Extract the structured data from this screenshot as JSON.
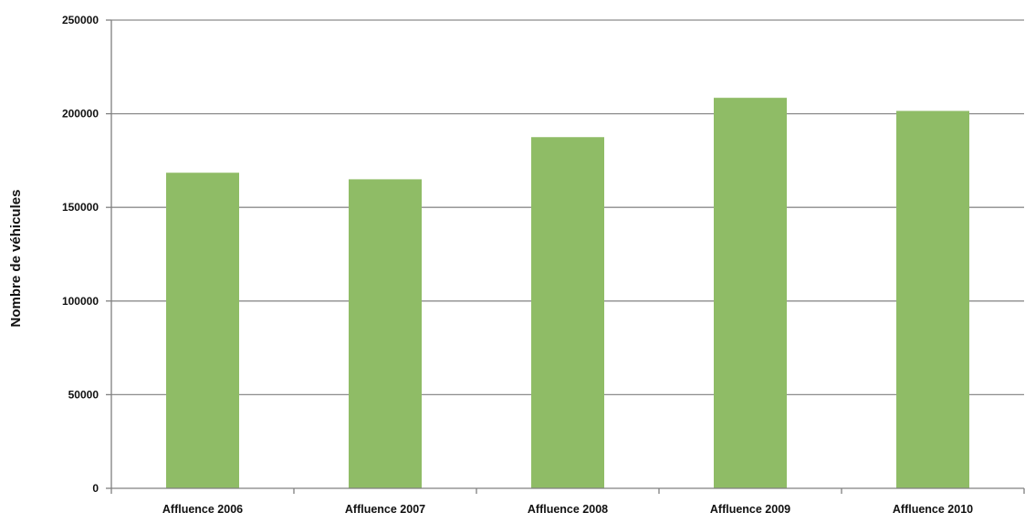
{
  "chart_data": {
    "type": "bar",
    "categories": [
      "Affluence 2006",
      "Affluence 2007",
      "Affluence 2008",
      "Affluence 2009",
      "Affluence 2010"
    ],
    "values": [
      168500,
      165000,
      187500,
      208500,
      201500
    ],
    "xlabel": "",
    "ylabel": "Nombre de véhicules",
    "ylim": [
      0,
      250000
    ],
    "yticks": [
      "0",
      "50000",
      "100000",
      "150000",
      "200000",
      "250000"
    ],
    "grid": true,
    "legend": "none",
    "bar_color": "#8fbc66",
    "grid_color": "#8c8c8c",
    "axis_color": "#808080"
  }
}
